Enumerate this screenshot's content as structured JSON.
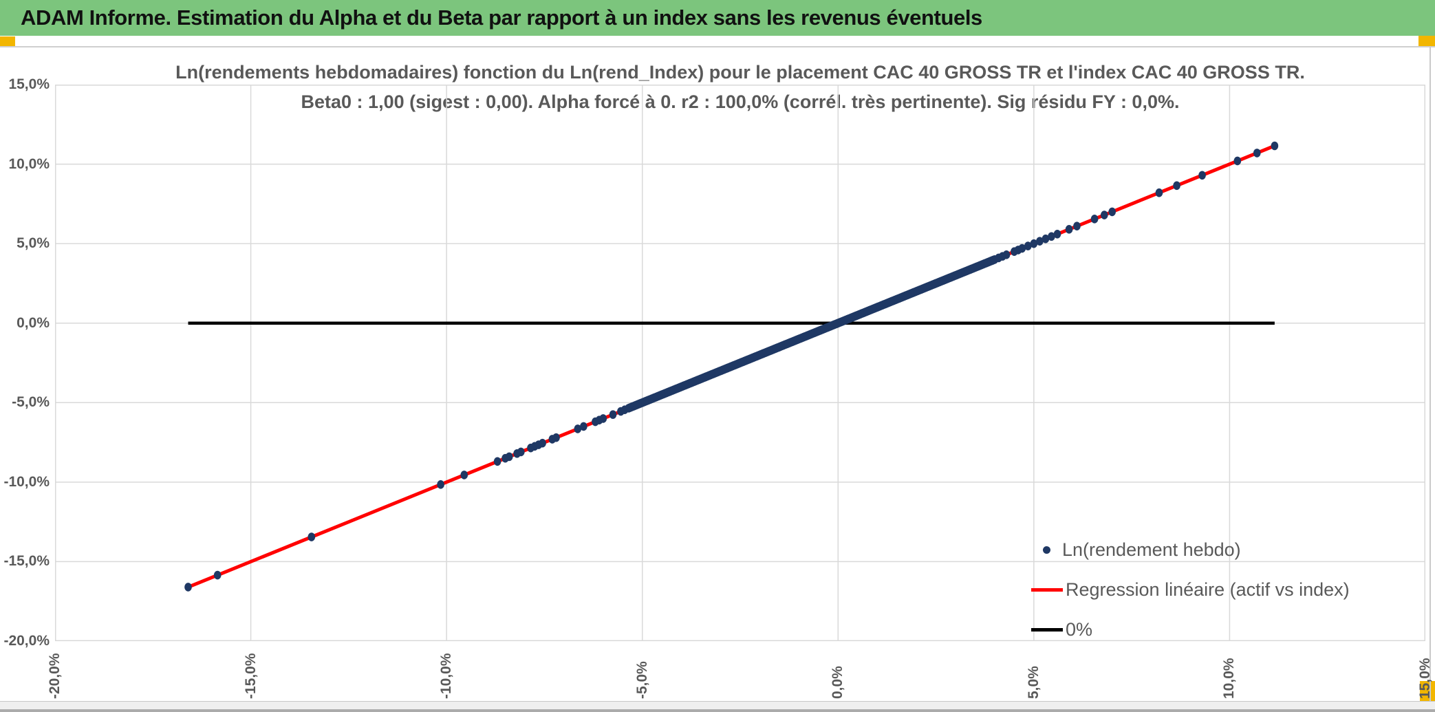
{
  "header": {
    "title": "ADAM Informe. Estimation du Alpha et du Beta par rapport à un index sans les revenus éventuels",
    "bg_color": "#7CC57D",
    "accent_color": "#F2B600"
  },
  "chart": {
    "title_line1": "Ln(rendements hebdomadaires) fonction du Ln(rend_Index) pour le placement CAC 40 GROSS TR et l'index CAC 40 GROSS TR.",
    "title_line2": "Beta0 : 1,00 (sigest : 0,00). Alpha forcé à 0. r2 : 100,0% (corrél. très pertinente). Sig résidu FY : 0,0%.",
    "legend": [
      {
        "label": "Ln(rendement hebdo)",
        "marker": "dot",
        "color": "#1F3864"
      },
      {
        "label": "Regression linéaire (actif vs index)",
        "marker": "line",
        "color": "#FF0000"
      },
      {
        "label": "0%",
        "marker": "line",
        "color": "#000000"
      }
    ],
    "legend_position": "inside bottom-right"
  },
  "chart_data": {
    "type": "scatter",
    "title": "Ln(rendements hebdomadaires) fonction du Ln(rend_Index) pour le placement CAC 40 GROSS TR et l'index CAC 40 GROSS TR.",
    "subtitle": "Beta0 : 1,00 (sigest : 0,00). Alpha forcé à 0. r2 : 100,0% (corrél. très pertinente). Sig résidu FY : 0,0%.",
    "xlabel": "",
    "ylabel": "",
    "xlim": [
      -20,
      15
    ],
    "ylim": [
      -20,
      15
    ],
    "x_tick_values": [
      -20,
      -15,
      -10,
      -5,
      0,
      5,
      10,
      15
    ],
    "x_tick_labels": [
      "-20,0%",
      "-15,0%",
      "-10,0%",
      "-5,0%",
      "0,0%",
      "5,0%",
      "10,0%",
      "15,0%"
    ],
    "y_tick_values": [
      15,
      10,
      5,
      0,
      -5,
      -10,
      -15,
      -20
    ],
    "y_tick_labels": [
      "15,0%",
      "10,0%",
      "5,0%",
      "0,0%",
      "-5,0%",
      "-10,0%",
      "-15,0%",
      "-20,0%"
    ],
    "grid": true,
    "grid_color": "#D9D9D9",
    "stats": {
      "beta0": "1,00",
      "sigest": "0,00",
      "alpha_force": "0",
      "r2": "100,0%",
      "sig_residu_FY": "0,0%"
    },
    "series": [
      {
        "name": "Ln(rendement hebdo)",
        "type": "scatter",
        "color": "#1F3864",
        "relation": "y = x (actif identique à l'index, corrélation 100%)",
        "points_pct": [
          -16.6,
          -15.85,
          -13.45,
          -10.15,
          -9.55,
          -8.7,
          -8.5,
          -8.4,
          -8.2,
          -8.1,
          -7.85,
          -7.75,
          -7.65,
          -7.55,
          -7.3,
          -7.2,
          -6.65,
          -6.5,
          -6.2,
          -6.1,
          -6.0,
          -5.75,
          -5.55,
          -5.45,
          4.1,
          4.2,
          4.3,
          4.5,
          4.6,
          4.7,
          4.85,
          5.0,
          5.15,
          5.3,
          5.45,
          5.6,
          5.9,
          6.1,
          6.55,
          6.8,
          7.0,
          8.2,
          8.65,
          9.3,
          10.2,
          10.7,
          11.15
        ],
        "dense_band_pct": {
          "min": -5.35,
          "max": 4.0,
          "count": 320
        }
      },
      {
        "name": "Regression linéaire (actif vs index)",
        "type": "line",
        "color": "#FF0000",
        "slope": 1.0,
        "intercept": 0.0,
        "x_range_pct": [
          -16.6,
          11.15
        ]
      },
      {
        "name": "0%",
        "type": "line",
        "color": "#000000",
        "y_pct": 0,
        "x_range_pct": [
          -16.6,
          11.15
        ]
      }
    ]
  }
}
